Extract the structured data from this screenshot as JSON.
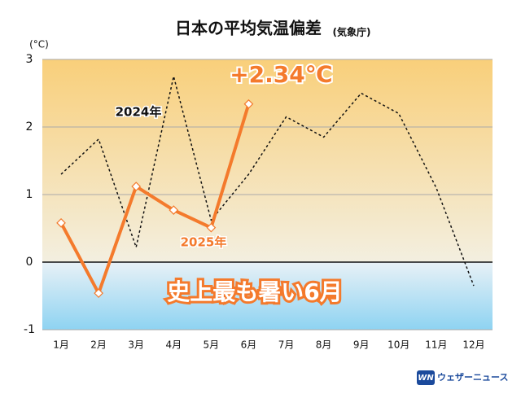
{
  "chart_data": {
    "type": "line",
    "title": "日本の平均気温偏差",
    "subtitle": "(気象庁)",
    "y_label": "(°C)",
    "categories": [
      "1月",
      "2月",
      "3月",
      "4月",
      "5月",
      "6月",
      "7月",
      "8月",
      "9月",
      "10月",
      "11月",
      "12月"
    ],
    "series": [
      {
        "name": "2024年",
        "color": "#111111",
        "style": "dotted",
        "marker": "none",
        "values": [
          1.3,
          1.82,
          0.22,
          2.75,
          0.62,
          1.3,
          2.15,
          1.85,
          2.5,
          2.2,
          1.1,
          -0.35
        ]
      },
      {
        "name": "2025年",
        "color": "#f47a2c",
        "style": "solid",
        "marker": "diamond",
        "values": [
          0.58,
          -0.46,
          1.12,
          0.77,
          0.51,
          2.34,
          null,
          null,
          null,
          null,
          null,
          null
        ],
        "value_labels": [
          null,
          null,
          null,
          null,
          null,
          "+2.34℃",
          null,
          null,
          null,
          null,
          null,
          null
        ]
      }
    ],
    "annotation": "史上最も暑い6月",
    "source": "ウェザーニュース",
    "logo": "WN",
    "ylim": [
      -1,
      3
    ],
    "yticks": [
      -1,
      0,
      1,
      2,
      3
    ],
    "grid": true
  }
}
